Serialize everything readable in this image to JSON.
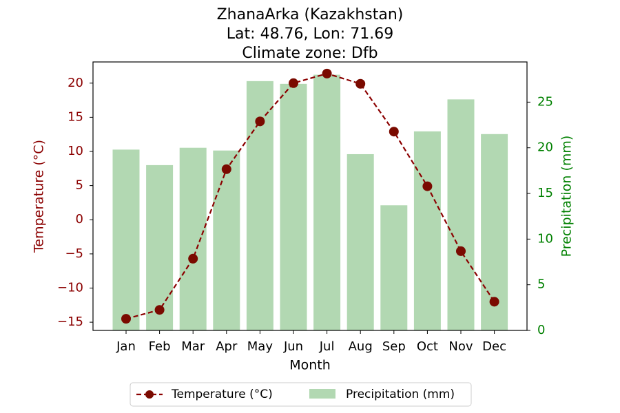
{
  "chart_data": {
    "type": "bar+line",
    "title": [
      "ZhanaArka (Kazakhstan)",
      "Lat: 48.76, Lon: 71.69",
      "Climate zone: Dfb"
    ],
    "xlabel": "Month",
    "categories": [
      "Jan",
      "Feb",
      "Mar",
      "Apr",
      "May",
      "Jun",
      "Jul",
      "Aug",
      "Sep",
      "Oct",
      "Nov",
      "Dec"
    ],
    "series": [
      {
        "name": "Temperature (°C)",
        "type": "line",
        "axis": "left",
        "color": "#8B0000",
        "values": [
          -14.5,
          -13.2,
          -5.7,
          7.4,
          14.4,
          20.0,
          21.4,
          19.9,
          12.9,
          4.9,
          -4.6,
          -12.0
        ]
      },
      {
        "name": "Precipitation (mm)",
        "type": "bar",
        "axis": "right",
        "color": "#b2d8b2",
        "values": [
          19.8,
          18.1,
          20.0,
          19.7,
          27.3,
          27.0,
          28.0,
          19.3,
          13.7,
          21.8,
          25.3,
          21.5
        ]
      }
    ],
    "y_left": {
      "label": "Temperature (°C)",
      "color": "#8B0000",
      "ticks": [
        -15,
        -10,
        -5,
        0,
        5,
        10,
        15,
        20
      ],
      "tick_labels": [
        "−15",
        "−10",
        "−5",
        "0",
        "5",
        "10",
        "15",
        "20"
      ],
      "ylim": [
        -16.2,
        23.1
      ]
    },
    "y_right": {
      "label": "Precipitation (mm)",
      "color": "#008000",
      "ticks": [
        0,
        5,
        10,
        15,
        20,
        25
      ],
      "tick_labels": [
        "0",
        "5",
        "10",
        "15",
        "20",
        "25"
      ],
      "ylim": [
        0,
        29.4
      ]
    },
    "legend": {
      "placement": "bottom-center",
      "entries": [
        "Temperature (°C)",
        "Precipitation (mm)"
      ]
    },
    "grid": false
  }
}
